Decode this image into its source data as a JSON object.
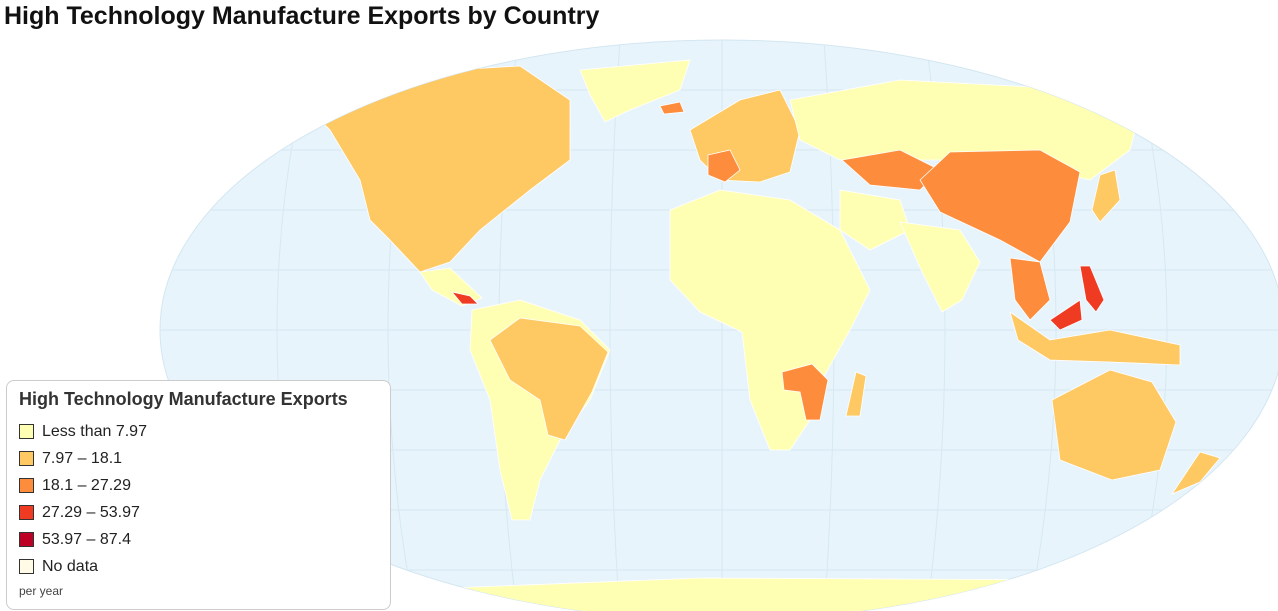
{
  "title": "High Technology Manufacture Exports by Country",
  "legend": {
    "title": "High Technology Manufacture Exports",
    "items": [
      {
        "label": "Less than 7.97",
        "color": "#ffffb3"
      },
      {
        "label": "7.97 – 18.1",
        "color": "#fec862"
      },
      {
        "label": "18.1 – 27.29",
        "color": "#fd8d3c"
      },
      {
        "label": "27.29 – 53.97",
        "color": "#ef3b22"
      },
      {
        "label": "53.97 – 87.4",
        "color": "#bd0026"
      },
      {
        "label": "No data",
        "color": "#fffbe6"
      }
    ],
    "note": "per year"
  }
}
